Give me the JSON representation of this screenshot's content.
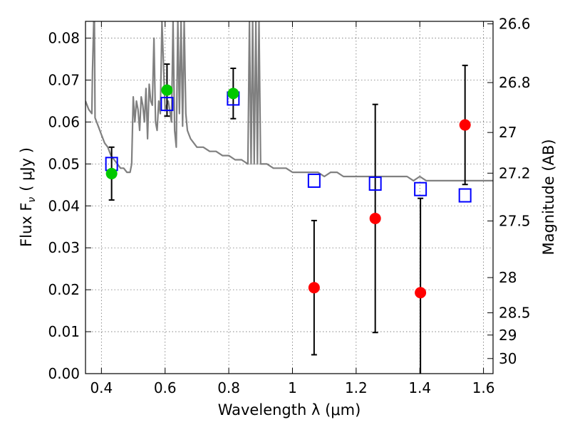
{
  "chart_data": {
    "type": "scatter",
    "title": "",
    "xlabel": "Wavelength  λ (μm)",
    "ylabel": "Flux  F",
    "ylabel_sub": "ν",
    "ylabel_unit": "( μJy )",
    "ylabel_right": "Magnitude (AB)",
    "xlim": [
      0.35,
      1.63
    ],
    "ylim": [
      0,
      0.084
    ],
    "grid": true,
    "x_ticks": [
      {
        "value": 0.4,
        "label": "0.4"
      },
      {
        "value": 0.6,
        "label": "0.6"
      },
      {
        "value": 0.8,
        "label": "0.8"
      },
      {
        "value": 1.0,
        "label": "1"
      },
      {
        "value": 1.2,
        "label": "1.2"
      },
      {
        "value": 1.4,
        "label": "1.4"
      },
      {
        "value": 1.6,
        "label": "1.6"
      }
    ],
    "y_ticks": [
      {
        "value": 0.0,
        "label": "0.00"
      },
      {
        "value": 0.01,
        "label": "0.01"
      },
      {
        "value": 0.02,
        "label": "0.02"
      },
      {
        "value": 0.03,
        "label": "0.03"
      },
      {
        "value": 0.04,
        "label": "0.04"
      },
      {
        "value": 0.05,
        "label": "0.05"
      },
      {
        "value": 0.06,
        "label": "0.06"
      },
      {
        "value": 0.07,
        "label": "0.07"
      },
      {
        "value": 0.08,
        "label": "0.08"
      }
    ],
    "right_ticks": [
      {
        "flux": 0.0834,
        "label": "26.6"
      },
      {
        "flux": 0.0694,
        "label": "26.8"
      },
      {
        "flux": 0.0575,
        "label": "27"
      },
      {
        "flux": 0.0478,
        "label": "27.2"
      },
      {
        "flux": 0.0364,
        "label": "27.5"
      },
      {
        "flux": 0.0229,
        "label": "28"
      },
      {
        "flux": 0.0145,
        "label": "28.5"
      },
      {
        "flux": 0.0092,
        "label": "29"
      },
      {
        "flux": 0.0036,
        "label": "30"
      }
    ],
    "series": [
      {
        "type": "line",
        "color": "#808080",
        "x": [
          0.35,
          0.36,
          0.37,
          0.372,
          0.376,
          0.378,
          0.38,
          0.39,
          0.4,
          0.41,
          0.42,
          0.43,
          0.44,
          0.45,
          0.46,
          0.47,
          0.48,
          0.49,
          0.495,
          0.5,
          0.505,
          0.51,
          0.515,
          0.52,
          0.525,
          0.53,
          0.535,
          0.54,
          0.545,
          0.55,
          0.555,
          0.56,
          0.565,
          0.57,
          0.575,
          0.58,
          0.585,
          0.59,
          0.6,
          0.61,
          0.62,
          0.625,
          0.63,
          0.635,
          0.64,
          0.645,
          0.65,
          0.655,
          0.66,
          0.665,
          0.67,
          0.675,
          0.68,
          0.7,
          0.72,
          0.74,
          0.76,
          0.78,
          0.8,
          0.82,
          0.84,
          0.86,
          0.865,
          0.87,
          0.875,
          0.88,
          0.885,
          0.89,
          0.895,
          0.9,
          0.92,
          0.94,
          0.96,
          0.98,
          1.0,
          1.02,
          1.04,
          1.06,
          1.08,
          1.1,
          1.12,
          1.14,
          1.16,
          1.18,
          1.2,
          1.22,
          1.24,
          1.26,
          1.28,
          1.3,
          1.32,
          1.34,
          1.36,
          1.38,
          1.4,
          1.42,
          1.44,
          1.46,
          1.48,
          1.5,
          1.52,
          1.54,
          1.56,
          1.58,
          1.6,
          1.63
        ],
        "y": [
          0.065,
          0.063,
          0.062,
          0.072,
          0.084,
          0.084,
          0.061,
          0.059,
          0.057,
          0.055,
          0.054,
          0.052,
          0.051,
          0.05,
          0.049,
          0.049,
          0.048,
          0.048,
          0.05,
          0.066,
          0.06,
          0.065,
          0.063,
          0.058,
          0.066,
          0.064,
          0.06,
          0.068,
          0.056,
          0.069,
          0.065,
          0.064,
          0.08,
          0.06,
          0.058,
          0.065,
          0.062,
          0.084,
          0.063,
          0.065,
          0.06,
          0.084,
          0.058,
          0.054,
          0.084,
          0.062,
          0.084,
          0.059,
          0.084,
          0.062,
          0.058,
          0.057,
          0.056,
          0.054,
          0.054,
          0.053,
          0.053,
          0.052,
          0.052,
          0.051,
          0.051,
          0.05,
          0.084,
          0.05,
          0.084,
          0.05,
          0.084,
          0.05,
          0.084,
          0.05,
          0.05,
          0.049,
          0.049,
          0.049,
          0.048,
          0.048,
          0.048,
          0.048,
          0.048,
          0.047,
          0.048,
          0.048,
          0.047,
          0.047,
          0.047,
          0.047,
          0.047,
          0.047,
          0.047,
          0.047,
          0.047,
          0.047,
          0.047,
          0.046,
          0.047,
          0.046,
          0.046,
          0.046,
          0.046,
          0.046,
          0.046,
          0.046,
          0.046,
          0.046,
          0.046,
          0.046
        ]
      },
      {
        "type": "scatter",
        "marker": "square",
        "color": "#0000ff",
        "x": [
          0.432,
          0.606,
          0.814,
          1.068,
          1.26,
          1.402,
          1.542
        ],
        "y": [
          0.05,
          0.0643,
          0.0656,
          0.046,
          0.0453,
          0.044,
          0.0425
        ]
      },
      {
        "type": "scatter",
        "marker": "circle",
        "color": "#00c800",
        "x": [
          0.432,
          0.606,
          0.814
        ],
        "y": [
          0.0477,
          0.0676,
          0.0668
        ],
        "err": [
          0.0063,
          0.0062,
          0.006
        ]
      },
      {
        "type": "scatter",
        "marker": "circle",
        "color": "#ff0000",
        "x": [
          1.068,
          1.26,
          1.402,
          1.542
        ],
        "y": [
          0.0205,
          0.037,
          0.0193,
          0.0593
        ],
        "err": [
          0.016,
          0.0272,
          0.0225,
          0.0142
        ]
      }
    ]
  }
}
